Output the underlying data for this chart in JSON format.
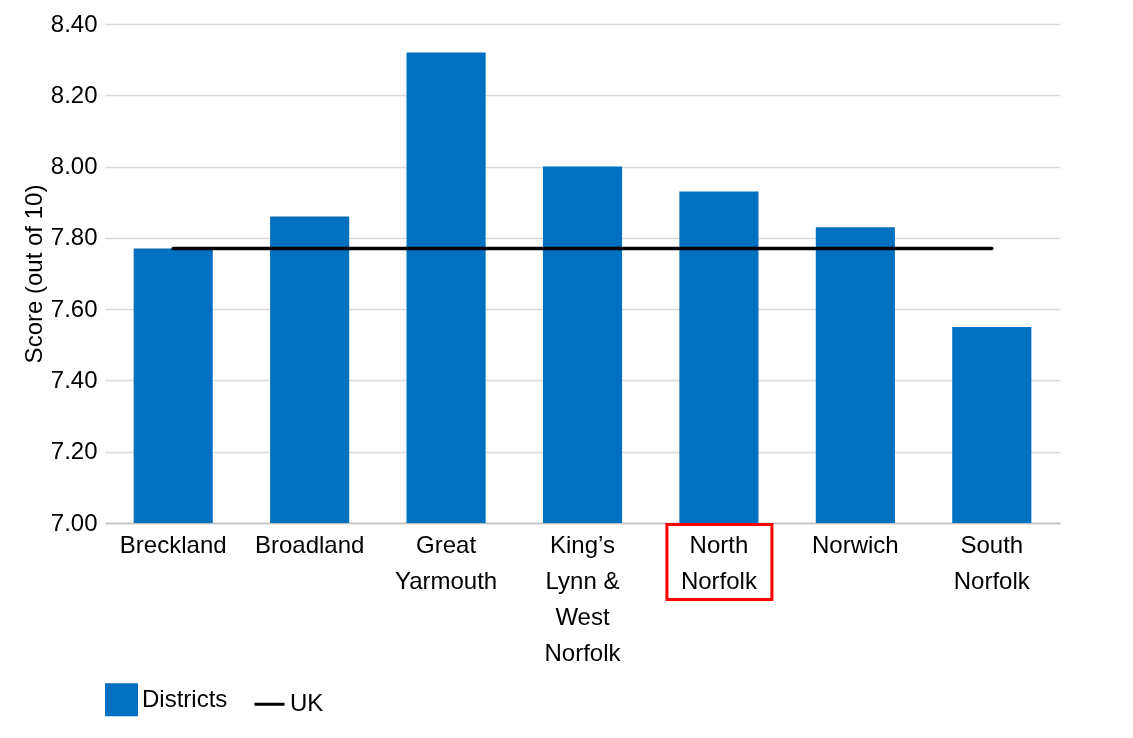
{
  "chart_data": {
    "type": "bar",
    "ylabel": "Score (out of 10)",
    "categories": [
      "Breckland",
      "Broadland",
      "Great Yarmouth",
      "King’s Lynn & West Norfolk",
      "North Norfolk",
      "Norwich",
      "South Norfolk"
    ],
    "series": [
      {
        "name": "Districts",
        "color": "#0070c0",
        "values": [
          7.77,
          7.86,
          8.32,
          8.0,
          7.93,
          7.83,
          7.55
        ]
      },
      {
        "name": "UK",
        "type": "line",
        "color": "#000000",
        "values": [
          7.77,
          7.77,
          7.77,
          7.77,
          7.77,
          7.77,
          7.77
        ]
      }
    ],
    "ylim": [
      7,
      8.4
    ],
    "yticks": [
      {
        "value": 7,
        "label": "7.00"
      },
      {
        "value": 7.2,
        "label": "7.20"
      },
      {
        "value": 7.4,
        "label": "7.40"
      },
      {
        "value": 7.6,
        "label": "7.60"
      },
      {
        "value": 7.8,
        "label": "7.80"
      },
      {
        "value": 8,
        "label": "8.00"
      },
      {
        "value": 8.2,
        "label": "8.20"
      },
      {
        "value": 8.4,
        "label": "8.40"
      }
    ],
    "grid": "y",
    "legend": "bottom",
    "marker": "none",
    "line_style": "solid"
  }
}
